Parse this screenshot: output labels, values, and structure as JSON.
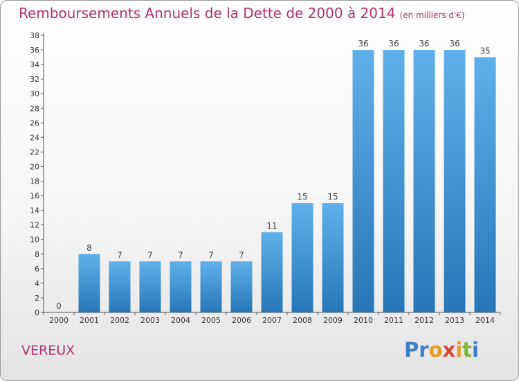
{
  "header": {
    "title": "Remboursements Annuels de la Dette de 2000 à 2014",
    "unit": "(en milliers d'€)"
  },
  "footer": {
    "commune": "VEREUX",
    "logo": "Proxiti"
  },
  "colors": {
    "title": "#b0306e",
    "bar_light": "#5fb0ea",
    "bar_dark": "#2777b8",
    "axis": "#555555"
  },
  "chart_data": {
    "type": "bar",
    "title": "Remboursements Annuels de la Dette de 2000 à 2014",
    "subtitle": "(en milliers d'€)",
    "xlabel": "",
    "ylabel": "",
    "categories": [
      "2000",
      "2001",
      "2002",
      "2003",
      "2004",
      "2005",
      "2006",
      "2007",
      "2008",
      "2009",
      "2010",
      "2011",
      "2012",
      "2013",
      "2014"
    ],
    "values": [
      0,
      8,
      7,
      7,
      7,
      7,
      7,
      11,
      15,
      15,
      36,
      36,
      36,
      36,
      35
    ],
    "ylim": [
      0,
      38
    ],
    "yticks": [
      0,
      2,
      4,
      6,
      8,
      10,
      12,
      14,
      16,
      18,
      20,
      22,
      24,
      26,
      28,
      30,
      32,
      34,
      36,
      38
    ],
    "grid": false,
    "legend": "none"
  }
}
